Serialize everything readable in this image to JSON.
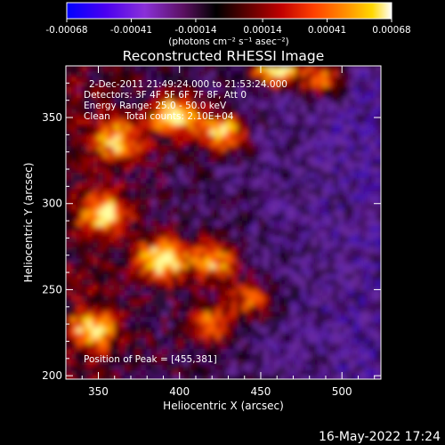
{
  "colorbar": {
    "tick_labels": [
      "-0.00068",
      "-0.00041",
      "-0.00014",
      "0.00014",
      "0.00041",
      "0.00068"
    ],
    "tick_values": [
      -0.00068,
      -0.00041,
      -0.00014,
      0.00014,
      0.00041,
      0.00068
    ],
    "range": [
      -0.00068,
      0.00068
    ],
    "unit_label": "(photons cm⁻² s⁻¹ asec⁻²)",
    "colors": [
      "#0000ff",
      "#5a00e0",
      "#8a2bd0",
      "#3a0030",
      "#000000",
      "#700000",
      "#c00000",
      "#ff4000",
      "#ff9000",
      "#ffd000",
      "#ffffff"
    ]
  },
  "chart_data": {
    "type": "heatmap",
    "title": "Reconstructed RHESSI Image",
    "xlabel": "Heliocentric X (arcsec)",
    "ylabel": "Heliocentric Y (arcsec)",
    "xlim": [
      330,
      524
    ],
    "ylim": [
      198,
      380
    ],
    "x_ticks": [
      350,
      400,
      450,
      500
    ],
    "y_ticks": [
      200,
      250,
      300,
      350
    ],
    "bright_regions": [
      {
        "x": 388,
        "y": 269,
        "relative_intensity": 1.0
      },
      {
        "x": 458,
        "y": 381,
        "relative_intensity": 1.0
      },
      {
        "x": 395,
        "y": 352,
        "relative_intensity": 0.9
      },
      {
        "x": 425,
        "y": 343,
        "relative_intensity": 0.8
      },
      {
        "x": 352,
        "y": 295,
        "relative_intensity": 0.8
      },
      {
        "x": 360,
        "y": 338,
        "relative_intensity": 0.75
      },
      {
        "x": 345,
        "y": 228,
        "relative_intensity": 0.7
      },
      {
        "x": 420,
        "y": 268,
        "relative_intensity": 0.7
      },
      {
        "x": 418,
        "y": 232,
        "relative_intensity": 0.55
      },
      {
        "x": 442,
        "y": 246,
        "relative_intensity": 0.5
      },
      {
        "x": 486,
        "y": 375,
        "relative_intensity": 0.65
      }
    ],
    "annotations": [
      "2-Dec-2011 21:49:24.000 to 21:53:24.000",
      "Detectors: 3F 4F 5F 6F 7F 8F, Att 0",
      "Energy Range: 25.0 - 50.0 keV",
      "Clean     Total counts: 2.10E+04"
    ],
    "peak_label": "Position of Peak = [455,381]"
  },
  "footer_timestamp": "16-May-2022 17:24"
}
